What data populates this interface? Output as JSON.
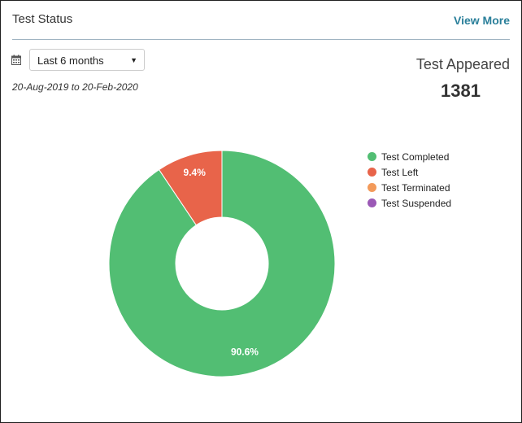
{
  "header": {
    "title": "Test Status",
    "view_more": "View More"
  },
  "filter": {
    "icon": "calendar-icon",
    "selected": "Last 6 months",
    "date_range": "20-Aug-2019 to 20-Feb-2020"
  },
  "summary": {
    "label": "Test Appeared",
    "value": "1381"
  },
  "chart_data": {
    "type": "pie",
    "series": [
      {
        "name": "Test Completed",
        "value": 90.6,
        "label": "90.6%",
        "color": "#52be73"
      },
      {
        "name": "Test Left",
        "value": 9.4,
        "label": "9.4%",
        "color": "#e8644a"
      },
      {
        "name": "Test Terminated",
        "value": 0,
        "label": "",
        "color": "#f39a5a"
      },
      {
        "name": "Test Suspended",
        "value": 0,
        "label": "",
        "color": "#9b59b6"
      }
    ],
    "legend_position": "right"
  }
}
